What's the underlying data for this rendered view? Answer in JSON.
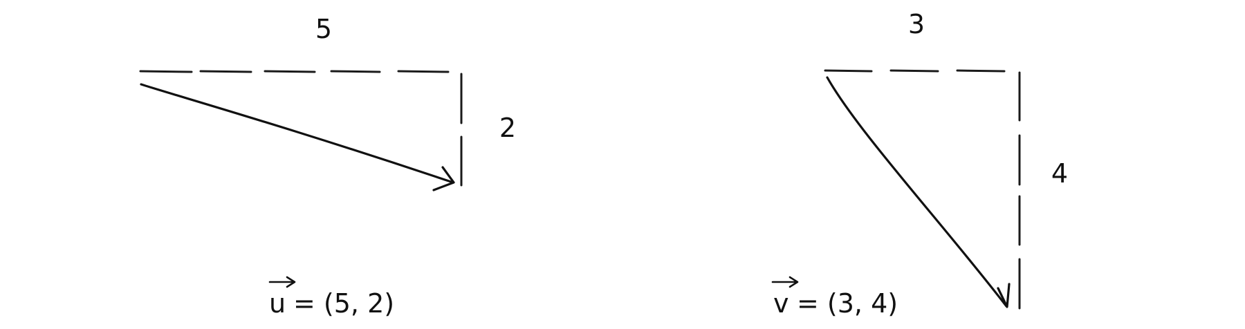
{
  "vectors": [
    {
      "name": "u",
      "x": 5,
      "y": 2,
      "horizontal_label": "5",
      "vertical_label": "2",
      "equation": {
        "symbol": "u",
        "rest": "= (5, 2)"
      }
    },
    {
      "name": "v",
      "x": 3,
      "y": 4,
      "horizontal_label": "3",
      "vertical_label": "4",
      "equation": {
        "symbol": "v",
        "rest": "= (3, 4)"
      }
    }
  ]
}
